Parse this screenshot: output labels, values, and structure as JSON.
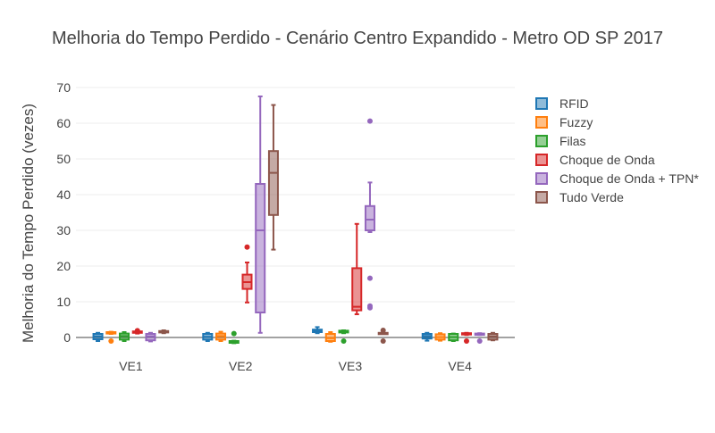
{
  "chart_data": {
    "type": "box",
    "title": "Melhoria do Tempo Perdido - Cenário Centro Expandido - Metro OD SP 2017",
    "xlabel": "",
    "ylabel": "Melhoria do Tempo Perdido (vezes)",
    "ylim": [
      -3,
      72
    ],
    "yticks": [
      0,
      10,
      20,
      30,
      40,
      50,
      60,
      70
    ],
    "categories": [
      "VE1",
      "VE2",
      "VE3",
      "VE4"
    ],
    "grid": true,
    "legend_position": "right",
    "series": [
      {
        "name": "RFID",
        "color": "#1f77b4",
        "boxes": [
          {
            "min": -1,
            "q1": -0.5,
            "median": 0.3,
            "q3": 1.0,
            "max": 1.3,
            "outliers": []
          },
          {
            "min": -1,
            "q1": -0.6,
            "median": 0.2,
            "q3": 1.0,
            "max": 1.3,
            "outliers": []
          },
          {
            "min": 1.2,
            "q1": 1.5,
            "median": 1.9,
            "q3": 2.2,
            "max": 2.9,
            "outliers": []
          },
          {
            "min": -0.9,
            "q1": -0.3,
            "median": 0.4,
            "q3": 1.0,
            "max": 1.3,
            "outliers": []
          }
        ]
      },
      {
        "name": "Fuzzy",
        "color": "#ff7f0e",
        "boxes": [
          {
            "min": 1.0,
            "q1": 1.1,
            "median": 1.3,
            "q3": 1.5,
            "max": 1.6,
            "outliers": [
              -1.0
            ]
          },
          {
            "min": -1,
            "q1": -0.6,
            "median": 0.4,
            "q3": 1.1,
            "max": 1.6,
            "outliers": []
          },
          {
            "min": -1.2,
            "q1": -1.0,
            "median": -0.2,
            "q3": 1.0,
            "max": 1.5,
            "outliers": []
          },
          {
            "min": -0.9,
            "q1": -0.6,
            "median": 0.1,
            "q3": 0.9,
            "max": 1.2,
            "outliers": []
          }
        ]
      },
      {
        "name": "Filas",
        "color": "#2ca02c",
        "boxes": [
          {
            "min": -1,
            "q1": -0.6,
            "median": 0.4,
            "q3": 1.1,
            "max": 1.5,
            "outliers": []
          },
          {
            "min": -1.6,
            "q1": -1.5,
            "median": -1.3,
            "q3": -1.0,
            "max": -0.9,
            "outliers": [
              1.1
            ]
          },
          {
            "min": 1.2,
            "q1": 1.4,
            "median": 1.7,
            "q3": 1.9,
            "max": 2.0,
            "outliers": [
              -1.0
            ]
          },
          {
            "min": -1.0,
            "q1": -0.8,
            "median": 0.1,
            "q3": 1.0,
            "max": 1.1,
            "outliers": []
          }
        ]
      },
      {
        "name": "Choque de Onda",
        "color": "#d62728",
        "boxes": [
          {
            "min": 1.1,
            "q1": 1.3,
            "median": 1.5,
            "q3": 1.7,
            "max": 1.8,
            "outliers": [
              1.9
            ]
          },
          {
            "min": 9.8,
            "q1": 13.6,
            "median": 15.5,
            "q3": 17.6,
            "max": 21.0,
            "outliers": [
              25.3
            ]
          },
          {
            "min": 6.5,
            "q1": 7.6,
            "median": 8.6,
            "q3": 19.4,
            "max": 31.8,
            "outliers": []
          },
          {
            "min": 0.7,
            "q1": 0.9,
            "median": 1.0,
            "q3": 1.2,
            "max": 1.3,
            "outliers": [
              -1.0
            ]
          }
        ]
      },
      {
        "name": "Choque de Onda + TPN*",
        "color": "#9467bd",
        "boxes": [
          {
            "min": -1.1,
            "q1": -0.8,
            "median": 0.3,
            "q3": 1.0,
            "max": 1.3,
            "outliers": []
          },
          {
            "min": 1.3,
            "q1": 7.0,
            "median": 30.0,
            "q3": 43.0,
            "max": 67.5,
            "outliers": []
          },
          {
            "min": 29.5,
            "q1": 30.0,
            "median": 33.0,
            "q3": 36.8,
            "max": 43.4,
            "outliers": [
              60.6,
              16.6,
              8.8,
              8.3
            ]
          },
          {
            "min": 0.7,
            "q1": 0.9,
            "median": 1.0,
            "q3": 1.1,
            "max": 1.2,
            "outliers": [
              -1.0
            ]
          }
        ]
      },
      {
        "name": "Tudo Verde",
        "color": "#8c564b",
        "boxes": [
          {
            "min": 1.2,
            "q1": 1.4,
            "median": 1.6,
            "q3": 1.8,
            "max": 2.0,
            "outliers": []
          },
          {
            "min": 24.6,
            "q1": 34.3,
            "median": 46.1,
            "q3": 52.2,
            "max": 65.1,
            "outliers": []
          },
          {
            "min": 1.0,
            "q1": 1.1,
            "median": 1.2,
            "q3": 1.3,
            "max": 1.4,
            "outliers": [
              2.0,
              -1.0
            ]
          },
          {
            "min": -0.8,
            "q1": -0.6,
            "median": 0.3,
            "q3": 1.0,
            "max": 1.3,
            "outliers": []
          }
        ]
      }
    ]
  }
}
